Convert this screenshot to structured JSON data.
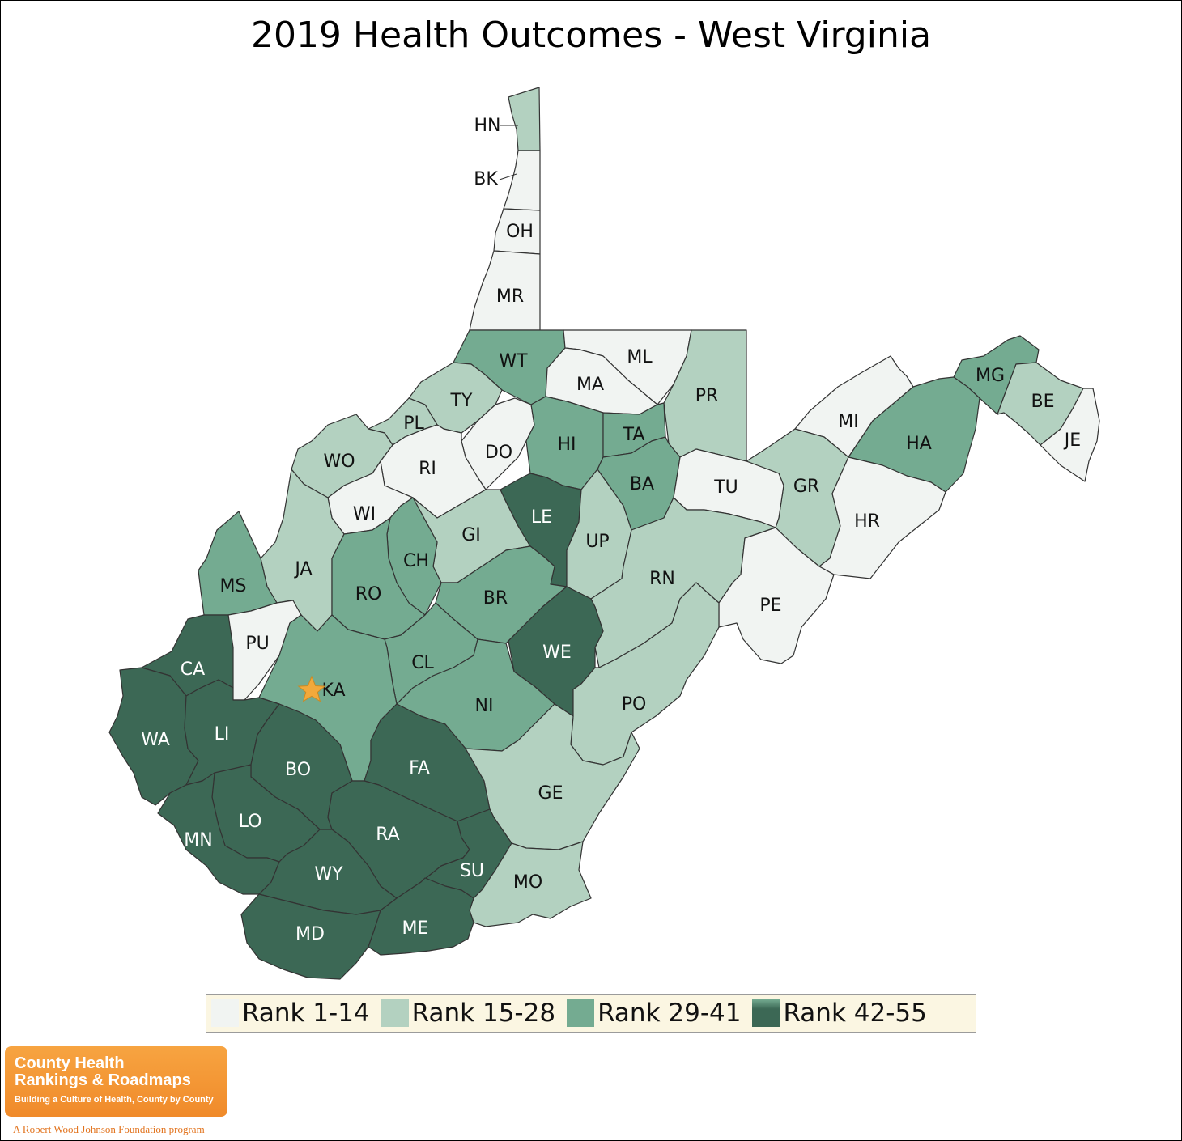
{
  "title": "2019 Health Outcomes - West Virginia",
  "colors": {
    "rank_1_14": "#f1f4f2",
    "rank_15_28": "#b3d1c0",
    "rank_29_41": "#74ab91",
    "rank_42_55": "#3c6855",
    "outline": "#333333",
    "star": "#f2a93b",
    "legend_bg": "#fbf6e2"
  },
  "legend": [
    {
      "label": "Rank 1-14",
      "tier": "rank_1_14"
    },
    {
      "label": "Rank 15-28",
      "tier": "rank_15_28"
    },
    {
      "label": "Rank 29-41",
      "tier": "rank_29_41"
    },
    {
      "label": "Rank 42-55",
      "tier": "rank_42_55"
    }
  ],
  "counties": [
    {
      "abbr": "HN",
      "tier": "rank_15_28"
    },
    {
      "abbr": "BK",
      "tier": "rank_1_14"
    },
    {
      "abbr": "OH",
      "tier": "rank_1_14"
    },
    {
      "abbr": "MR",
      "tier": "rank_1_14"
    },
    {
      "abbr": "WT",
      "tier": "rank_29_41"
    },
    {
      "abbr": "ML",
      "tier": "rank_1_14"
    },
    {
      "abbr": "MA",
      "tier": "rank_1_14"
    },
    {
      "abbr": "PR",
      "tier": "rank_15_28"
    },
    {
      "abbr": "TY",
      "tier": "rank_15_28"
    },
    {
      "abbr": "PL",
      "tier": "rank_15_28"
    },
    {
      "abbr": "DO",
      "tier": "rank_1_14"
    },
    {
      "abbr": "HI",
      "tier": "rank_29_41"
    },
    {
      "abbr": "TA",
      "tier": "rank_29_41"
    },
    {
      "abbr": "BA",
      "tier": "rank_29_41"
    },
    {
      "abbr": "MG",
      "tier": "rank_29_41"
    },
    {
      "abbr": "BE",
      "tier": "rank_15_28"
    },
    {
      "abbr": "JE",
      "tier": "rank_1_14"
    },
    {
      "abbr": "MI",
      "tier": "rank_1_14"
    },
    {
      "abbr": "HA",
      "tier": "rank_29_41"
    },
    {
      "abbr": "GR",
      "tier": "rank_15_28"
    },
    {
      "abbr": "HR",
      "tier": "rank_1_14"
    },
    {
      "abbr": "TU",
      "tier": "rank_1_14"
    },
    {
      "abbr": "WO",
      "tier": "rank_15_28"
    },
    {
      "abbr": "RI",
      "tier": "rank_1_14"
    },
    {
      "abbr": "WI",
      "tier": "rank_1_14"
    },
    {
      "abbr": "GI",
      "tier": "rank_15_28"
    },
    {
      "abbr": "LE",
      "tier": "rank_42_55"
    },
    {
      "abbr": "UP",
      "tier": "rank_15_28"
    },
    {
      "abbr": "RN",
      "tier": "rank_15_28"
    },
    {
      "abbr": "PE",
      "tier": "rank_1_14"
    },
    {
      "abbr": "JA",
      "tier": "rank_15_28"
    },
    {
      "abbr": "CH",
      "tier": "rank_29_41"
    },
    {
      "abbr": "MS",
      "tier": "rank_29_41"
    },
    {
      "abbr": "RO",
      "tier": "rank_29_41"
    },
    {
      "abbr": "BR",
      "tier": "rank_29_41"
    },
    {
      "abbr": "WE",
      "tier": "rank_42_55"
    },
    {
      "abbr": "PU",
      "tier": "rank_1_14"
    },
    {
      "abbr": "CA",
      "tier": "rank_42_55"
    },
    {
      "abbr": "CL",
      "tier": "rank_29_41"
    },
    {
      "abbr": "KA",
      "tier": "rank_29_41"
    },
    {
      "abbr": "NI",
      "tier": "rank_29_41"
    },
    {
      "abbr": "PO",
      "tier": "rank_15_28"
    },
    {
      "abbr": "WA",
      "tier": "rank_42_55"
    },
    {
      "abbr": "LI",
      "tier": "rank_42_55"
    },
    {
      "abbr": "BO",
      "tier": "rank_42_55"
    },
    {
      "abbr": "FA",
      "tier": "rank_42_55"
    },
    {
      "abbr": "GE",
      "tier": "rank_15_28"
    },
    {
      "abbr": "LO",
      "tier": "rank_42_55"
    },
    {
      "abbr": "MN",
      "tier": "rank_42_55"
    },
    {
      "abbr": "RA",
      "tier": "rank_42_55"
    },
    {
      "abbr": "SU",
      "tier": "rank_42_55"
    },
    {
      "abbr": "WY",
      "tier": "rank_42_55"
    },
    {
      "abbr": "MO",
      "tier": "rank_15_28"
    },
    {
      "abbr": "MD",
      "tier": "rank_42_55"
    },
    {
      "abbr": "ME",
      "tier": "rank_42_55"
    }
  ],
  "capital_marker": {
    "county": "KA",
    "icon": "star-icon"
  },
  "logo": {
    "line1": "County Health",
    "line2": "Rankings & Roadmaps",
    "tagline": "Building a Culture of Health, County by County",
    "sponsor": "A Robert Wood Johnson Foundation program"
  }
}
